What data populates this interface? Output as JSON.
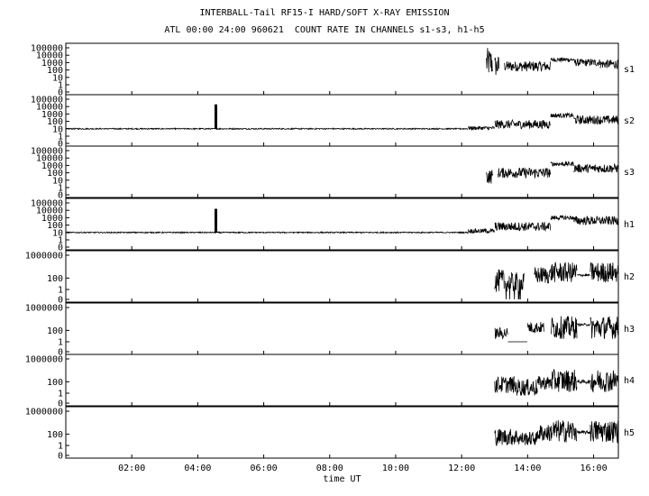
{
  "title": "INTERBALL-Tail RF15-I HARD/SOFT X-RAY EMISSION",
  "subtitle": "ATL 00:00 24:00 960621  COUNT RATE IN CHANNELS s1-s3, h1-h5",
  "chart_data": {
    "type": "line",
    "xlabel": "time UT",
    "x_range_hours": [
      0.0,
      16.75
    ],
    "x_ticks": [
      {
        "hour": 2,
        "label": "02:00"
      },
      {
        "hour": 4,
        "label": "04:00"
      },
      {
        "hour": 6,
        "label": "06:00"
      },
      {
        "hour": 8,
        "label": "08:00"
      },
      {
        "hour": 10,
        "label": "10:00"
      },
      {
        "hour": 12,
        "label": "12:00"
      },
      {
        "hour": 14,
        "label": "14:00"
      },
      {
        "hour": 16,
        "label": "16:00"
      }
    ],
    "y_scale": "log",
    "panels": [
      {
        "name": "s1",
        "ytick_labels": [
          "100000",
          "10000",
          "1000",
          "100",
          "10",
          "1",
          "0"
        ],
        "segments": [
          {
            "start": 12.75,
            "end": 12.95,
            "level": 3,
            "spread": 2.0
          },
          {
            "start": 13.0,
            "end": 13.15,
            "level": 2.5,
            "spread": 1.5
          },
          {
            "start": 13.3,
            "end": 14.7,
            "level": 2.5,
            "spread": 0.7
          },
          {
            "start": 14.7,
            "end": 15.4,
            "level": 3.4,
            "spread": 0.3
          },
          {
            "start": 15.4,
            "end": 16.2,
            "level": 3.0,
            "spread": 0.5
          },
          {
            "start": 16.2,
            "end": 16.75,
            "level": 2.8,
            "spread": 0.6
          }
        ],
        "spikes": []
      },
      {
        "name": "s2",
        "ytick_labels": [
          "100000",
          "10000",
          "1000",
          "100",
          "10",
          "1",
          "0"
        ],
        "segments": [
          {
            "start": 0.0,
            "end": 12.2,
            "level": 1.0,
            "spread": 0.08
          },
          {
            "start": 12.2,
            "end": 13.0,
            "level": 1.1,
            "spread": 0.25
          },
          {
            "start": 13.0,
            "end": 14.7,
            "level": 1.6,
            "spread": 0.6
          },
          {
            "start": 14.7,
            "end": 15.4,
            "level": 2.8,
            "spread": 0.3
          },
          {
            "start": 15.4,
            "end": 16.75,
            "level": 2.2,
            "spread": 0.6
          }
        ],
        "spikes": [
          {
            "hour": 4.55,
            "value_log": 4.3
          }
        ]
      },
      {
        "name": "s3",
        "ytick_labels": [
          "100000",
          "10000",
          "1000",
          "100",
          "10",
          "1",
          "0"
        ],
        "segments": [
          {
            "start": 12.75,
            "end": 12.95,
            "level": 1.5,
            "spread": 1.0
          },
          {
            "start": 13.1,
            "end": 14.7,
            "level": 2.0,
            "spread": 0.7
          },
          {
            "start": 14.7,
            "end": 15.4,
            "level": 3.2,
            "spread": 0.3
          },
          {
            "start": 15.4,
            "end": 16.75,
            "level": 2.6,
            "spread": 0.6
          }
        ],
        "spikes": []
      },
      {
        "name": "h1",
        "ytick_labels": [
          "100000",
          "10000",
          "1000",
          "100",
          "10",
          "1",
          "0"
        ],
        "segments": [
          {
            "start": 0.0,
            "end": 12.2,
            "level": 1.0,
            "spread": 0.08
          },
          {
            "start": 12.2,
            "end": 13.0,
            "level": 1.2,
            "spread": 0.3
          },
          {
            "start": 13.0,
            "end": 14.7,
            "level": 1.8,
            "spread": 0.6
          },
          {
            "start": 14.7,
            "end": 15.4,
            "level": 3.0,
            "spread": 0.3
          },
          {
            "start": 15.4,
            "end": 16.75,
            "level": 2.6,
            "spread": 0.6
          }
        ],
        "spikes": [
          {
            "hour": 4.55,
            "value_log": 4.2
          }
        ]
      },
      {
        "name": "h2",
        "ytick_labels": [
          "1000000",
          "100",
          "1",
          "0"
        ],
        "segments": [
          {
            "start": 13.0,
            "end": 13.3,
            "level": 1.5,
            "spread": 2.0
          },
          {
            "start": 13.3,
            "end": 13.9,
            "level": 1.0,
            "spread": 2.0
          },
          {
            "start": 14.2,
            "end": 14.7,
            "level": 2.5,
            "spread": 1.5
          },
          {
            "start": 14.7,
            "end": 15.5,
            "level": 3.0,
            "spread": 1.8
          },
          {
            "start": 15.5,
            "end": 15.9,
            "level": 2.5,
            "spread": 0.2
          },
          {
            "start": 15.9,
            "end": 16.75,
            "level": 3.0,
            "spread": 1.8
          }
        ],
        "spikes": []
      },
      {
        "name": "h3",
        "ytick_labels": [
          "1000000",
          "100",
          "1",
          "0"
        ],
        "segments": [
          {
            "start": 13.0,
            "end": 13.4,
            "level": 1.5,
            "spread": 1.0
          },
          {
            "start": 13.4,
            "end": 14.0,
            "level": 0.0,
            "spread": 0.0
          },
          {
            "start": 14.0,
            "end": 14.5,
            "level": 2.5,
            "spread": 1.0
          },
          {
            "start": 14.7,
            "end": 15.5,
            "level": 2.5,
            "spread": 2.0
          },
          {
            "start": 15.5,
            "end": 15.9,
            "level": 3.0,
            "spread": 0.2
          },
          {
            "start": 15.9,
            "end": 16.75,
            "level": 2.5,
            "spread": 2.0
          }
        ],
        "spikes": []
      },
      {
        "name": "h4",
        "ytick_labels": [
          "1000000",
          "100",
          "1",
          "0"
        ],
        "segments": [
          {
            "start": 13.0,
            "end": 13.6,
            "level": 1.5,
            "spread": 1.5
          },
          {
            "start": 13.6,
            "end": 14.3,
            "level": 1.0,
            "spread": 1.5
          },
          {
            "start": 14.3,
            "end": 14.7,
            "level": 1.8,
            "spread": 1.2
          },
          {
            "start": 14.7,
            "end": 15.5,
            "level": 2.2,
            "spread": 2.0
          },
          {
            "start": 15.5,
            "end": 15.9,
            "level": 2.0,
            "spread": 0.3
          },
          {
            "start": 15.9,
            "end": 16.75,
            "level": 2.2,
            "spread": 2.0
          }
        ],
        "spikes": []
      },
      {
        "name": "h5",
        "ytick_labels": [
          "1000000",
          "100",
          "1",
          "0"
        ],
        "segments": [
          {
            "start": 13.0,
            "end": 13.7,
            "level": 1.5,
            "spread": 1.5
          },
          {
            "start": 13.7,
            "end": 14.3,
            "level": 1.2,
            "spread": 1.2
          },
          {
            "start": 14.3,
            "end": 14.7,
            "level": 2.2,
            "spread": 1.5
          },
          {
            "start": 14.7,
            "end": 15.5,
            "level": 2.5,
            "spread": 2.0
          },
          {
            "start": 15.5,
            "end": 15.9,
            "level": 2.3,
            "spread": 0.3
          },
          {
            "start": 15.9,
            "end": 16.75,
            "level": 2.5,
            "spread": 2.0
          }
        ],
        "spikes": []
      }
    ]
  }
}
